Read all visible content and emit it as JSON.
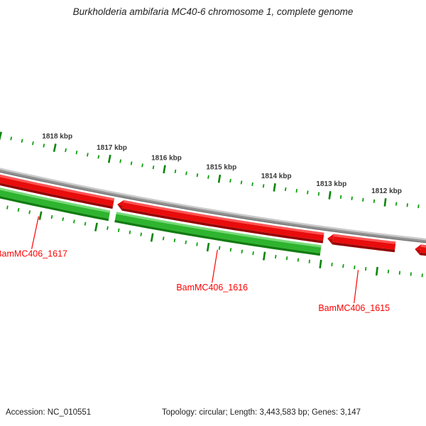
{
  "title": "Burkholderia ambifaria MC40-6 chromosome 1, complete genome",
  "footer": {
    "accession": "Accession: NC_010551",
    "stats": "Topology: circular; Length: 3,443,583 bp; Genes: 3,147"
  },
  "colors": {
    "backbone_mid": "#919191",
    "backbone_light": "#cbcbcb",
    "backbone_dark": "#6d6d6d",
    "red_mid": "#e90c0c",
    "red_light": "#ff5353",
    "red_dark": "#940202",
    "red_arrow_lower": "#bb0606",
    "green_mid": "#2fb42f",
    "green_light": "#76da76",
    "green_dark": "#107c10",
    "tick_minor": "#0f9e0f",
    "tick_major": "#0b860b",
    "gene_label": "#fe0000",
    "ruler_text": "#383838",
    "text": "#1f1f1f"
  },
  "chart_data": {
    "type": "circular-genome-map-segment",
    "organism_title": "Burkholderia ambifaria MC40-6 chromosome 1, complete genome",
    "accession": "NC_010551",
    "topology": "circular",
    "length_bp_text": "3,443,583",
    "genes_count_text": "3,147",
    "ruler_unit": "kbp",
    "minor_tick_kbp": 0.2,
    "visible_range_kbp": [
      1810.2,
      1819.6
    ],
    "arrow_direction": "left-toward-increasing-kbp",
    "ruler_major": [
      {
        "kbp": 1818,
        "label": "1818 kbp"
      },
      {
        "kbp": 1817,
        "label": "1817 kbp"
      },
      {
        "kbp": 1816,
        "label": "1816 kbp"
      },
      {
        "kbp": 1815,
        "label": "1815 kbp"
      },
      {
        "kbp": 1814,
        "label": "1814 kbp"
      },
      {
        "kbp": 1813,
        "label": "1813 kbp"
      },
      {
        "kbp": 1812,
        "label": "1812 kbp"
      }
    ],
    "red_track": [
      {
        "name": "BamMC406_1617",
        "lo_kbp": 1816.78,
        "hi_kbp": 1819.4,
        "arrow": true
      },
      {
        "name": "BamMC406_1616",
        "lo_kbp": 1813.01,
        "hi_kbp": 1816.71,
        "arrow": true
      },
      {
        "name": "BamMC406_1615",
        "lo_kbp": 1811.73,
        "hi_kbp": 1812.94,
        "arrow": true
      },
      {
        "name": "",
        "lo_kbp": 1810.55,
        "hi_kbp": 1811.38,
        "arrow": true
      }
    ],
    "green_track": [
      {
        "lo_kbp": 1816.81,
        "hi_kbp": 1819.4
      },
      {
        "lo_kbp": 1813.03,
        "hi_kbp": 1816.7
      }
    ],
    "gene_labels": [
      {
        "text": "BamMC406_1617",
        "at_kbp": 1818.03
      },
      {
        "text": "BamMC406_1616",
        "at_kbp": 1814.83
      },
      {
        "text": "BamMC406_1615",
        "at_kbp": 1812.33
      }
    ]
  }
}
